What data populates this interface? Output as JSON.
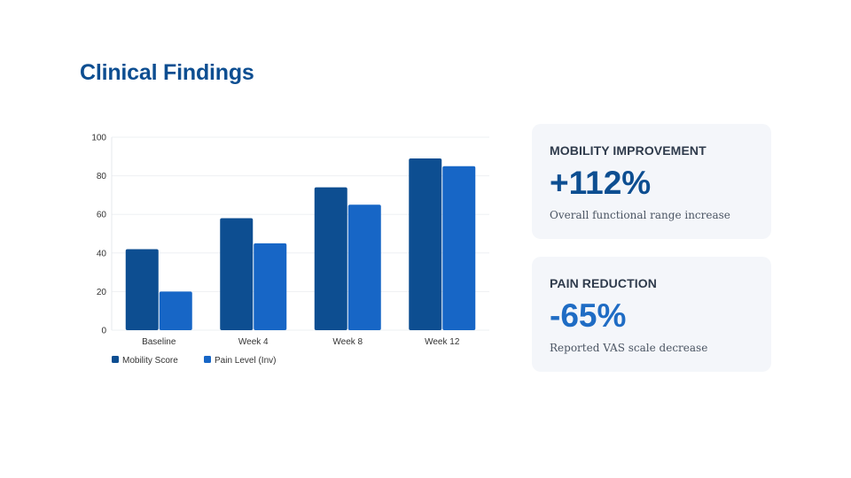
{
  "slide": {
    "title": "Clinical Findings"
  },
  "chart_data": {
    "type": "bar",
    "title": "",
    "xlabel": "",
    "ylabel": "",
    "categories": [
      "Baseline",
      "Week 4",
      "Week 8",
      "Week 12"
    ],
    "series": [
      {
        "name": "Mobility Score",
        "values": [
          42,
          58,
          74,
          89
        ],
        "color": "#0d4e91"
      },
      {
        "name": "Pain Level (Inv)",
        "values": [
          20,
          45,
          65,
          85
        ],
        "color": "#1766c6"
      }
    ],
    "ylim": [
      0,
      100
    ],
    "yticks": [
      0,
      20,
      40,
      60,
      80,
      100
    ],
    "grid": true,
    "legend": "bottom-left"
  },
  "metrics": [
    {
      "label": "MOBILITY IMPROVEMENT",
      "value": "+112%",
      "description": "Overall functional range increase"
    },
    {
      "label": "PAIN REDUCTION",
      "value": "-65%",
      "description": "Reported VAS scale decrease"
    }
  ]
}
